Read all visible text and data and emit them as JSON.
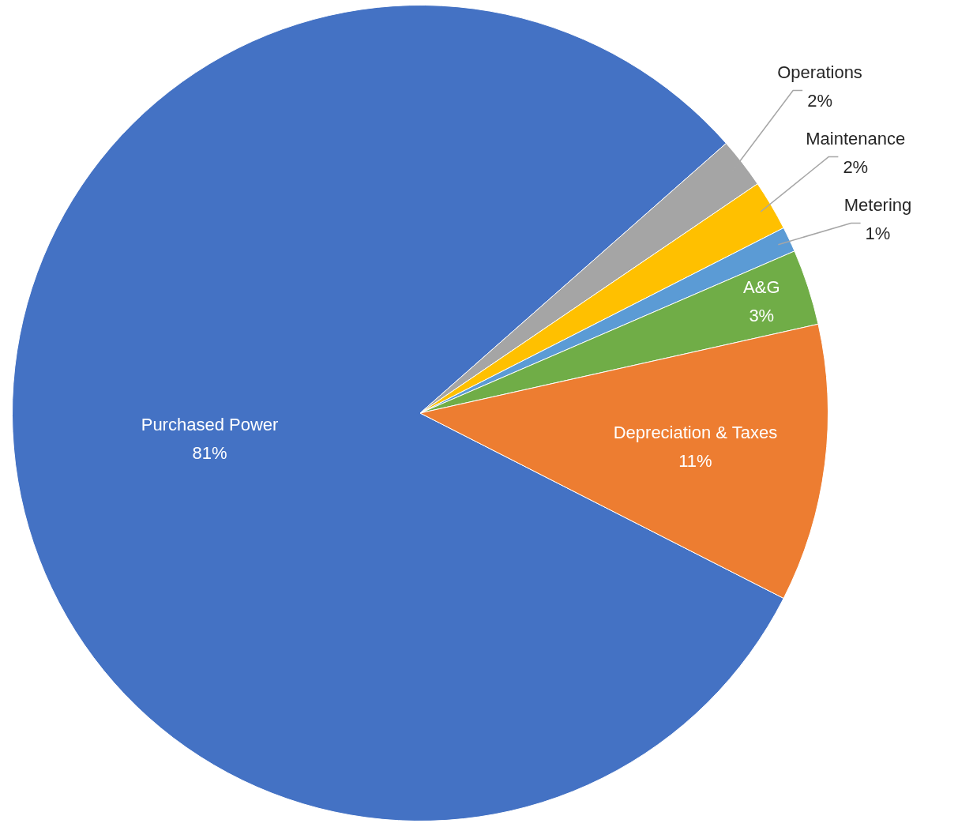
{
  "chart_data": {
    "type": "pie",
    "categories": [
      "Purchased Power",
      "Operations",
      "Maintenance",
      "Metering",
      "A&G",
      "Depreciation & Taxes"
    ],
    "values": [
      81,
      2,
      2,
      1,
      3,
      11
    ],
    "colors": [
      "#4472c4",
      "#a5a5a5",
      "#ffc000",
      "#5b9bd5",
      "#70ad47",
      "#ed7d31"
    ],
    "value_labels": [
      "81%",
      "2%",
      "2%",
      "1%",
      "3%",
      "11%"
    ]
  }
}
